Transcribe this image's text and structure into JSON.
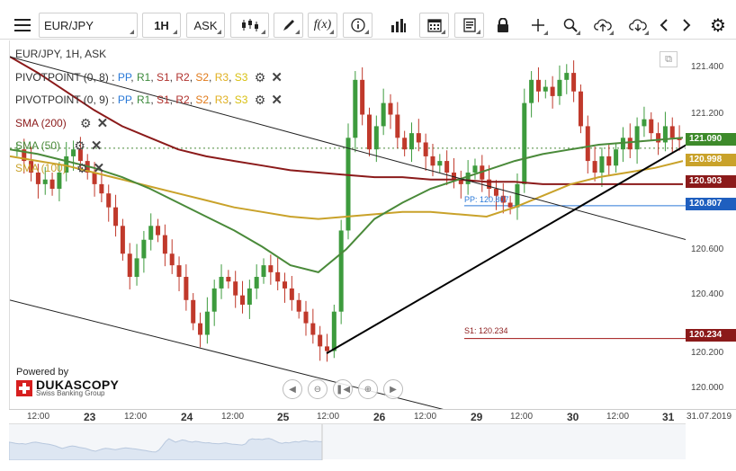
{
  "toolbar": {
    "menu_icon": "hamburger-menu-icon",
    "instrument": "EUR/JPY",
    "period": "1H",
    "side": "ASK",
    "icons": [
      "candlestick-type-icon",
      "draw-pencil-icon",
      "function-fx-icon",
      "info-icon",
      "volume-bars-icon",
      "calendar-icon",
      "report-document-icon",
      "lock-icon",
      "crosshair-icon",
      "zoom-magnifier-icon",
      "cloud-upload-icon",
      "cloud-download-icon",
      "arrow-left-icon",
      "arrow-right-icon",
      "settings-gear-icon"
    ]
  },
  "legend": {
    "symbol_line": "EUR/JPY, 1H, ASK",
    "pivot1": {
      "name": "PIVOTPOINT (0, 8)",
      "sep": " : ",
      "pp": "PP",
      "r1": "R1",
      "s1": "S1",
      "r2": "R2",
      "s2": "S2",
      "r3": "R3",
      "s3": "S3"
    },
    "pivot2": {
      "name": "PIVOTPOINT (0, 9)",
      "sep": " : ",
      "pp": "PP",
      "r1": "R1",
      "s1": "S1",
      "r2": "R2",
      "s2": "S2",
      "r3": "R3",
      "s3": "S3"
    },
    "sma200": "SMA (200)",
    "sma50": "SMA (50)",
    "sma100": "SMA (100)"
  },
  "colors": {
    "bull": "#3d9b3d",
    "bear": "#c0392b",
    "sma200": "#8b1a1a",
    "sma50": "#4a8a3a",
    "sma100": "#c9a22a",
    "pp_line": "#2a79d8",
    "s1_line": "#a01515",
    "trend": "#000000",
    "badge_current": "#3d8a2a",
    "badge_sma100": "#c9a22a",
    "badge_sma200": "#8b1a1a",
    "badge_pp": "#1f5fbf",
    "badge_s1": "#8b1a1a"
  },
  "chart_labels": {
    "pp": "PP: 120.807",
    "s1": "S1: 120.234"
  },
  "y_axis": {
    "ticks": [
      "121.400",
      "121.200",
      "120.600",
      "120.400",
      "120.200",
      "120.000"
    ],
    "badges": {
      "current": "121.090",
      "sma100": "120.998",
      "sma200": "120.903",
      "pp": "120.807",
      "s1": "120.234"
    }
  },
  "x_axis": {
    "labels": [
      {
        "t": "12:00",
        "day": false
      },
      {
        "t": "23",
        "day": true
      },
      {
        "t": "12:00",
        "day": false
      },
      {
        "t": "24",
        "day": true
      },
      {
        "t": "12:00",
        "day": false
      },
      {
        "t": "25",
        "day": true
      },
      {
        "t": "12:00",
        "day": false
      },
      {
        "t": "26",
        "day": true
      },
      {
        "t": "12:00",
        "day": false
      },
      {
        "t": "29",
        "day": true
      },
      {
        "t": "12:00",
        "day": false
      },
      {
        "t": "30",
        "day": true
      },
      {
        "t": "12:00",
        "day": false
      },
      {
        "t": "31",
        "day": true
      },
      {
        "t": "31.07.2019",
        "day": false
      }
    ]
  },
  "branding": {
    "powered_by": "Powered by",
    "name": "DUKASCOPY",
    "sub": "Swiss Banking Group"
  },
  "nav_controls": [
    "nav-back-icon",
    "zoom-out-icon",
    "reset-zoom-icon",
    "zoom-in-icon",
    "nav-forward-icon"
  ],
  "chart_data": {
    "type": "candlestick",
    "instrument": "EUR/JPY",
    "timeframe": "1H",
    "ylim": [
      119.93,
      121.52
    ],
    "close_path": [
      121.05,
      121.0,
      120.95,
      120.9,
      120.92,
      120.88,
      120.95,
      121.02,
      121.05,
      121.0,
      120.95,
      120.9,
      120.86,
      120.8,
      120.72,
      120.6,
      120.5,
      120.58,
      120.66,
      120.72,
      120.68,
      120.6,
      120.55,
      120.5,
      120.4,
      120.3,
      120.25,
      120.35,
      120.45,
      120.5,
      120.48,
      120.42,
      120.38,
      120.45,
      120.5,
      120.55,
      120.52,
      120.48,
      120.45,
      120.4,
      120.35,
      120.3,
      120.25,
      120.2,
      120.18,
      120.35,
      120.7,
      121.1,
      121.35,
      121.2,
      121.05,
      121.15,
      121.25,
      121.2,
      121.1,
      121.05,
      121.12,
      121.08,
      121.02,
      120.98,
      121.0,
      120.95,
      120.92,
      120.9,
      120.95,
      120.98,
      120.92,
      120.88,
      120.85,
      120.82,
      120.8,
      120.9,
      121.25,
      121.35,
      121.3,
      121.32,
      121.28,
      121.35,
      121.38,
      121.3,
      121.15,
      121.0,
      120.95,
      121.02,
      120.98,
      121.05,
      121.1,
      121.05,
      121.15,
      121.18,
      121.12,
      121.08,
      121.15,
      121.1,
      121.09
    ],
    "sma50": [
      121.05,
      121.03,
      121.0,
      120.97,
      120.93,
      120.88,
      120.82,
      120.76,
      120.7,
      120.63,
      120.55,
      120.52,
      120.62,
      120.75,
      120.82,
      120.88,
      120.92,
      120.96,
      121.0,
      121.03,
      121.05,
      121.07,
      121.08,
      121.09,
      121.1
    ],
    "sma100": [
      121.02,
      121.0,
      120.98,
      120.95,
      120.92,
      120.89,
      120.86,
      120.83,
      120.8,
      120.78,
      120.76,
      120.75,
      120.76,
      120.77,
      120.78,
      120.78,
      120.77,
      120.76,
      120.8,
      120.85,
      120.9,
      120.93,
      120.95,
      120.97,
      121.0
    ],
    "sma200": [
      121.45,
      121.38,
      121.3,
      121.22,
      121.15,
      121.1,
      121.05,
      121.02,
      121.0,
      120.98,
      120.96,
      120.95,
      120.94,
      120.93,
      120.93,
      120.92,
      120.92,
      120.91,
      120.91,
      120.9,
      120.9,
      120.9,
      120.9,
      120.9,
      120.9
    ],
    "pp_level": 120.807,
    "s1_level": 120.234,
    "last_close": 121.09
  }
}
